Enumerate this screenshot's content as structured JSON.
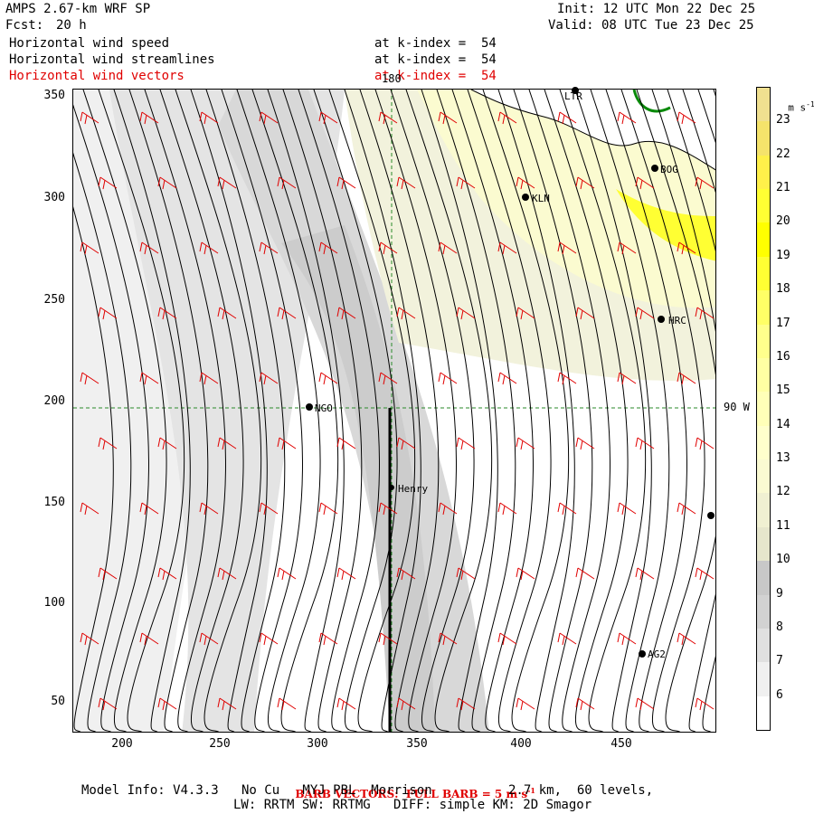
{
  "header": {
    "model": "AMPS 2.67-km WRF SP",
    "fcst_label": "Fcst:",
    "fcst_value": "20 h",
    "init": "Init: 12 UTC Mon 22 Dec 25",
    "valid": "Valid: 08 UTC Tue 23 Dec 25"
  },
  "fields": [
    {
      "name": "Horizontal wind speed",
      "level": "at k-index =  54",
      "color": "#000000"
    },
    {
      "name": "Horizontal wind streamlines",
      "level": "at k-index =  54",
      "color": "#000000"
    },
    {
      "name": "Horizontal wind vectors",
      "level": "at k-index =  54",
      "color": "#e00000"
    }
  ],
  "map": {
    "x_ticks": [
      "200",
      "250",
      "300",
      "350",
      "400",
      "450"
    ],
    "y_ticks": [
      "350",
      "300",
      "250",
      "200",
      "150",
      "100",
      "50"
    ],
    "grid_labels": {
      "lon": "180",
      "lat": "90 W"
    },
    "stations": [
      "LTR",
      "BOG",
      "KLN",
      "HRC",
      "NGO",
      "Henry",
      "AG2"
    ]
  },
  "colorbar": {
    "unit": "m s",
    "unit_exp": "-1",
    "levels": [
      "6",
      "7",
      "8",
      "9",
      "10",
      "11",
      "12",
      "13",
      "14",
      "15",
      "16",
      "17",
      "18",
      "19",
      "20",
      "21",
      "22",
      "23"
    ],
    "colors": [
      "#ffffff",
      "#f0f0f0",
      "#e0e0e0",
      "#d2d2d2",
      "#c8c8c8",
      "#e6e6cc",
      "#f0f0d2",
      "#fafad2",
      "#ffffcc",
      "#ffffb8",
      "#ffffa3",
      "#ffff8c",
      "#ffff66",
      "#ffff33",
      "#ffff00",
      "#ffff33",
      "#fff04a",
      "#f5e36b",
      "#f0e090"
    ]
  },
  "footer": {
    "barb_label": "BARB VECTORS:  FULL BARB = 5 m s",
    "barb_exp": "-1",
    "model_info": "Model Info: V4.3.3   No Cu   MYJ PBL  Morrison          2.7 km,  60 levels,",
    "physics": "LW: RRTM SW: RRTMG   DIFF: simple KM: 2D Smagor"
  }
}
